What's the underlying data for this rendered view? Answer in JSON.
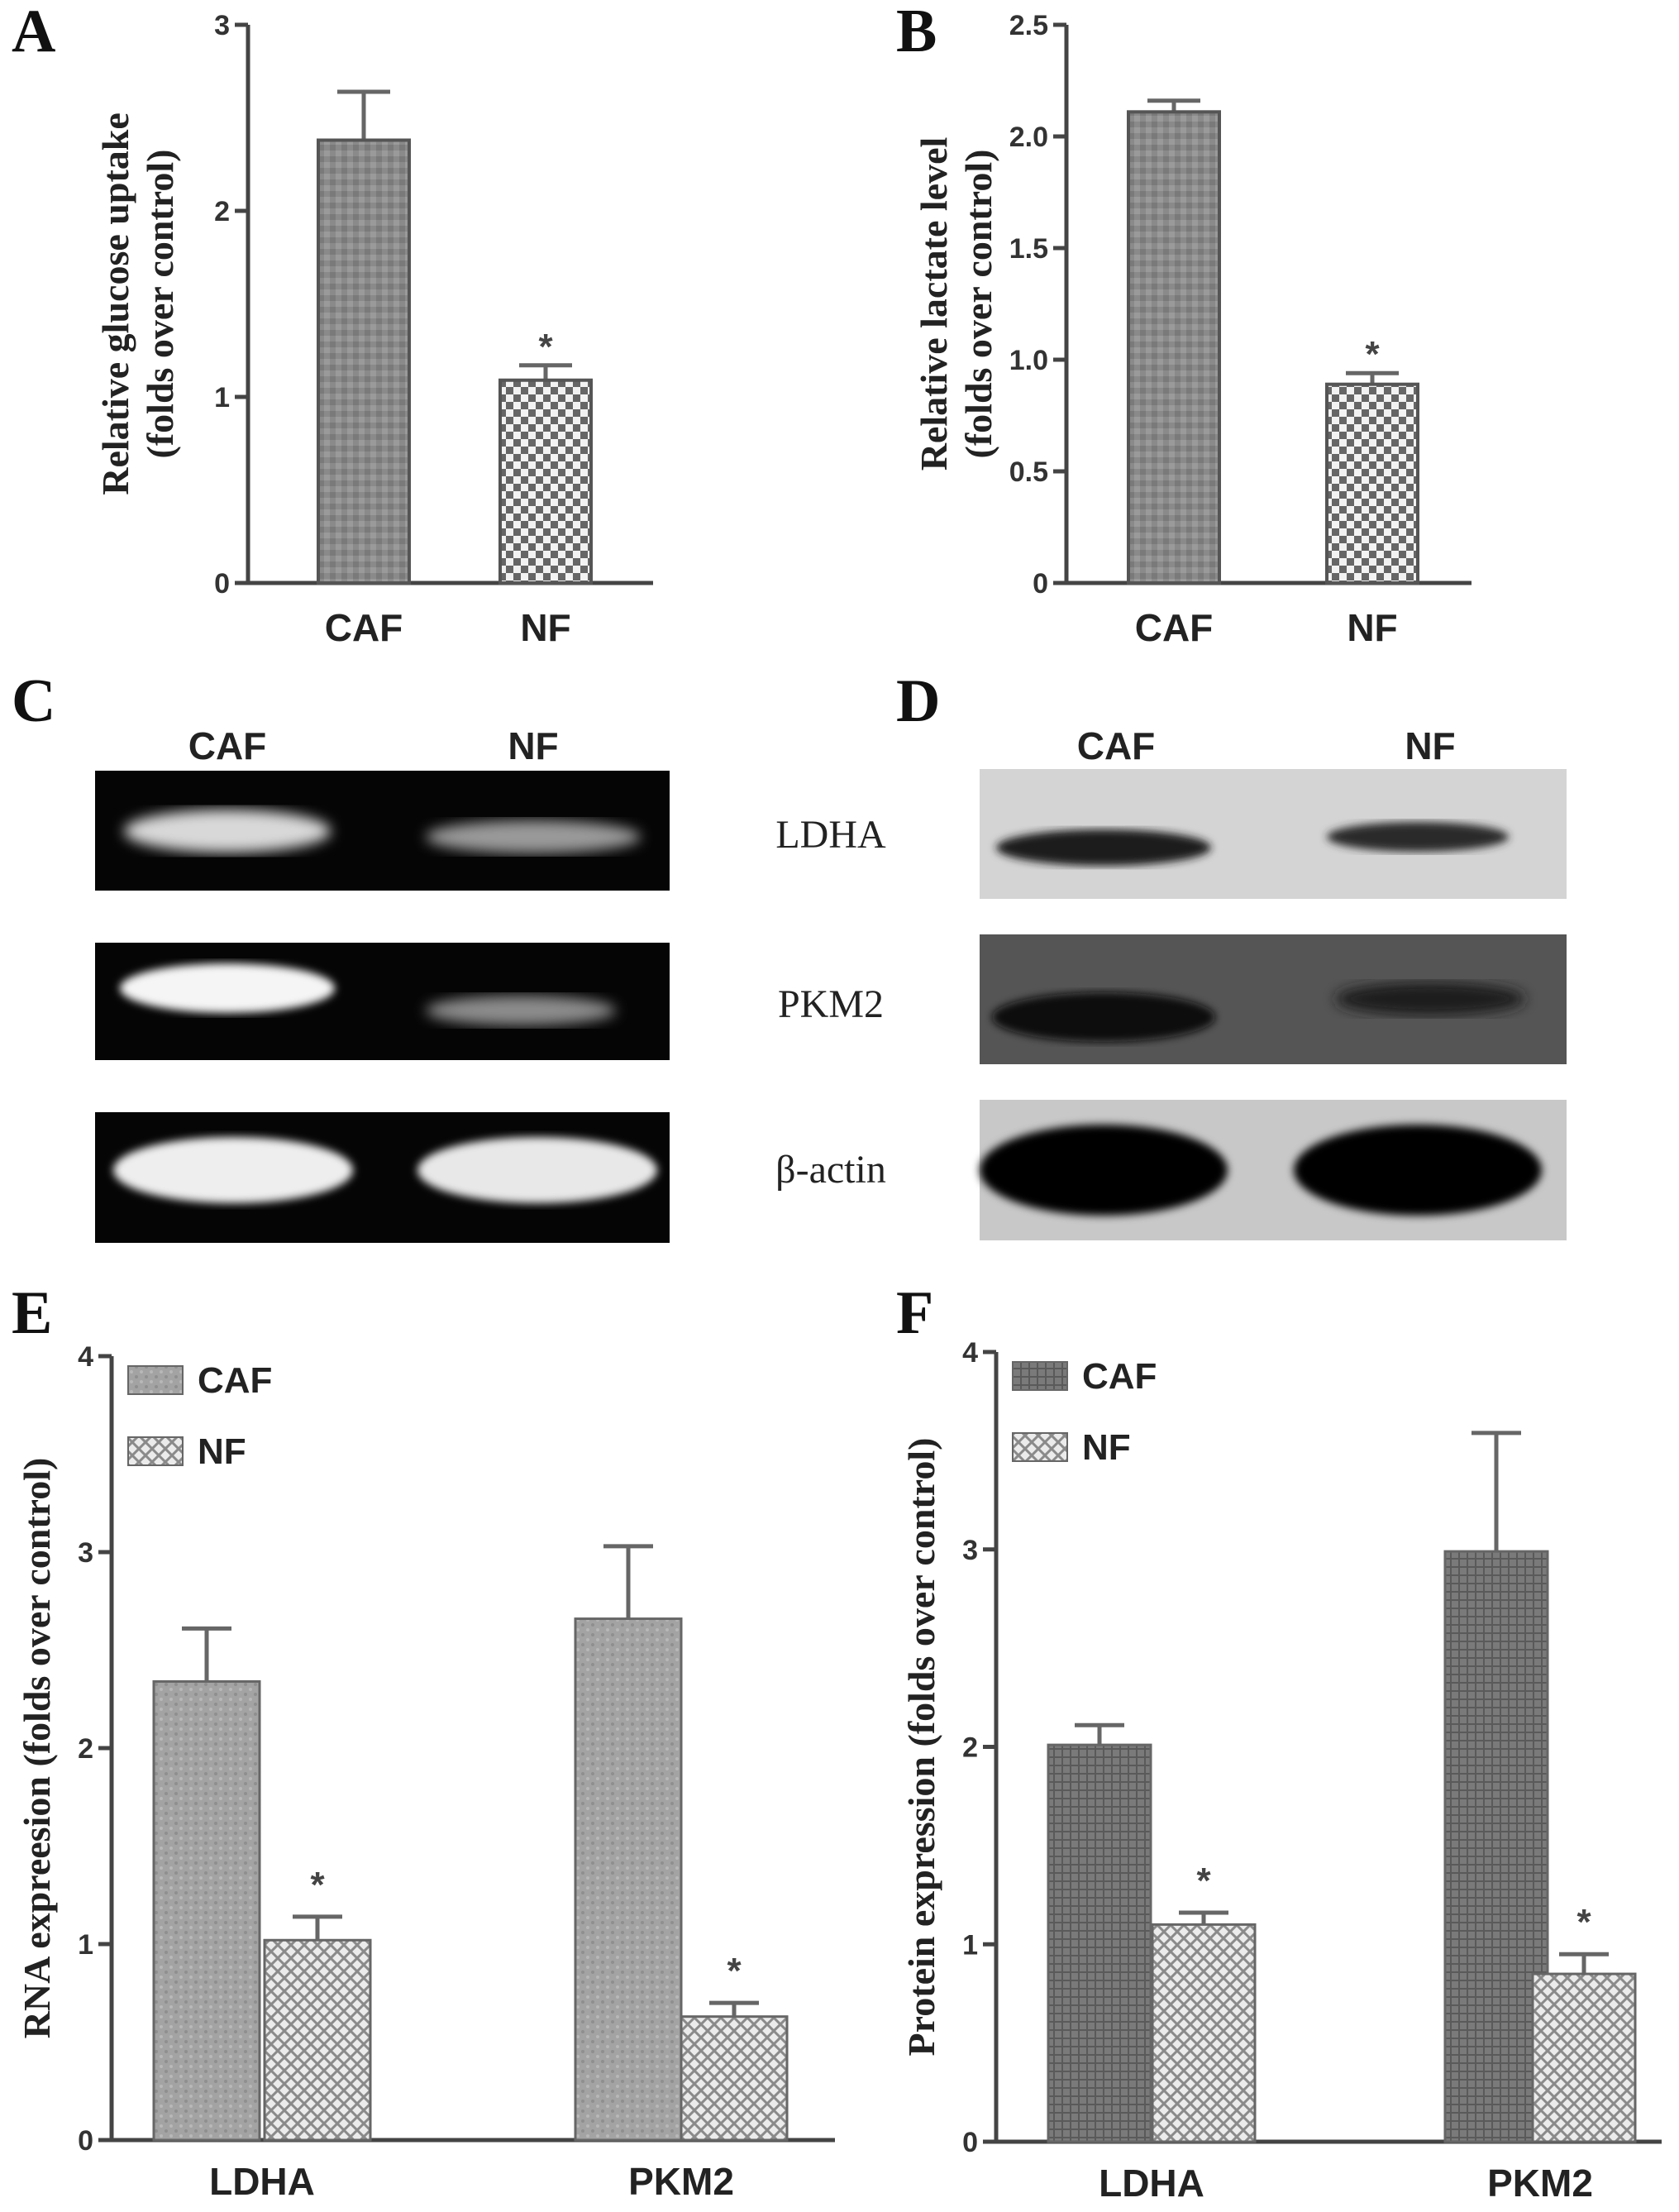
{
  "colors": {
    "caf_fill": "#8a8a8a",
    "nf_fill": "#e2e2e2",
    "axis": "#444444",
    "gel_bg": "#050505",
    "blot_bg": "#d4d4d4"
  },
  "panels": {
    "A": "A",
    "B": "B",
    "C": "C",
    "D": "D",
    "E": "E",
    "F": "F"
  },
  "gel_C": {
    "lanes": [
      "CAF",
      "NF"
    ]
  },
  "blot_D": {
    "lanes": [
      "CAF",
      "NF"
    ],
    "rows": [
      "LDHA",
      "PKM2",
      "β-actin"
    ]
  },
  "chart_data": [
    {
      "id": "A",
      "type": "bar",
      "categories": [
        "CAF",
        "NF"
      ],
      "values": [
        2.38,
        1.09
      ],
      "errors": [
        0.26,
        0.08
      ],
      "significance": [
        "",
        "*"
      ],
      "ylabel": [
        "Relative glucose uptake",
        "(folds over control)"
      ],
      "ylim": [
        0,
        3
      ],
      "yticks": [
        "0",
        "1",
        "2",
        "3"
      ],
      "grid": false
    },
    {
      "id": "B",
      "type": "bar",
      "categories": [
        "CAF",
        "NF"
      ],
      "values": [
        2.11,
        0.89
      ],
      "errors": [
        0.05,
        0.05
      ],
      "significance": [
        "",
        "*"
      ],
      "ylabel": [
        "Relative lactate level",
        "(folds over control)"
      ],
      "ylim": [
        0,
        2.5
      ],
      "yticks": [
        "0",
        "0.5",
        "1.0",
        "1.5",
        "2.0",
        "2.5"
      ],
      "grid": false
    },
    {
      "id": "E",
      "type": "bar",
      "categories": [
        "LDHA",
        "PKM2"
      ],
      "series": [
        {
          "name": "CAF",
          "values": [
            2.34,
            2.66
          ],
          "errors": [
            0.27,
            0.37
          ]
        },
        {
          "name": "NF",
          "values": [
            1.02,
            0.63
          ],
          "errors": [
            0.12,
            0.07
          ],
          "significance": [
            "*",
            "*"
          ]
        }
      ],
      "ylabel": "RNA expreesion (folds over control)",
      "ylim": [
        0,
        4
      ],
      "yticks": [
        "0",
        "1",
        "2",
        "3",
        "4"
      ],
      "legend": "top-left",
      "grid": false
    },
    {
      "id": "F",
      "type": "bar",
      "categories": [
        "LDHA",
        "PKM2"
      ],
      "series": [
        {
          "name": "CAF",
          "values": [
            2.01,
            2.99
          ],
          "errors": [
            0.1,
            0.6
          ]
        },
        {
          "name": "NF",
          "values": [
            1.1,
            0.85
          ],
          "errors": [
            0.06,
            0.1
          ],
          "significance": [
            "*",
            "*"
          ]
        }
      ],
      "ylabel": "Protein expression (folds over control)",
      "ylim": [
        0,
        4
      ],
      "yticks": [
        "0",
        "1",
        "2",
        "3",
        "4"
      ],
      "legend": "top-left",
      "grid": false
    }
  ]
}
